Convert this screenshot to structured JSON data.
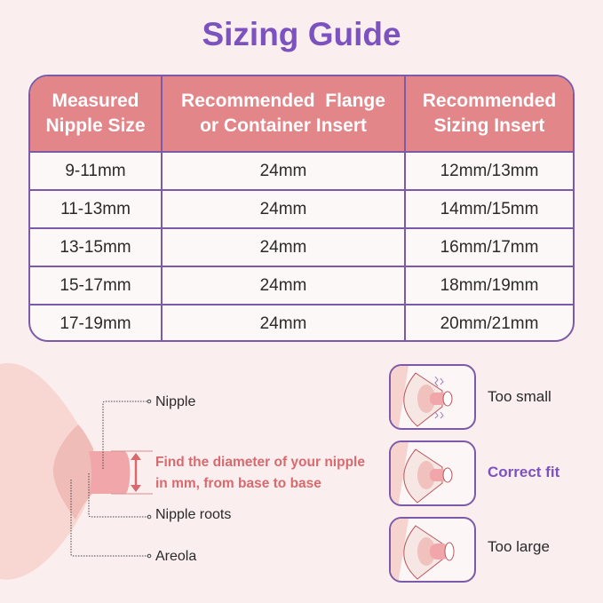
{
  "title": "Sizing Guide",
  "table": {
    "headers": [
      "Measured Nipple Size",
      "Recommended  Flange or Container Insert",
      "Recommended Sizing Insert"
    ],
    "header_lines": [
      [
        "Measured",
        "Nipple Size"
      ],
      [
        "Recommended  Flange",
        "or Container Insert"
      ],
      [
        "Recommended",
        "Sizing Insert"
      ]
    ],
    "rows": [
      [
        "9-11mm",
        "24mm",
        "12mm/13mm"
      ],
      [
        "11-13mm",
        "24mm",
        "14mm/15mm"
      ],
      [
        "13-15mm",
        "24mm",
        "16mm/17mm"
      ],
      [
        "15-17mm",
        "24mm",
        "18mm/19mm"
      ],
      [
        "17-19mm",
        "24mm",
        "20mm/21mm"
      ]
    ]
  },
  "diagram": {
    "labels": {
      "nipple": "Nipple",
      "nipple_roots": "Nipple roots",
      "areola": "Areola"
    },
    "instruction_lines": [
      "Find the diameter of your nipple",
      "in mm, from base to base"
    ]
  },
  "fit_examples": [
    {
      "label": "Too small"
    },
    {
      "label": "Correct fit"
    },
    {
      "label": "Too large"
    }
  ],
  "colors": {
    "accent_purple": "#7b52bf",
    "header_pink": "#e2868a",
    "note_red": "#d86a6e",
    "background": "#fbeeef"
  }
}
